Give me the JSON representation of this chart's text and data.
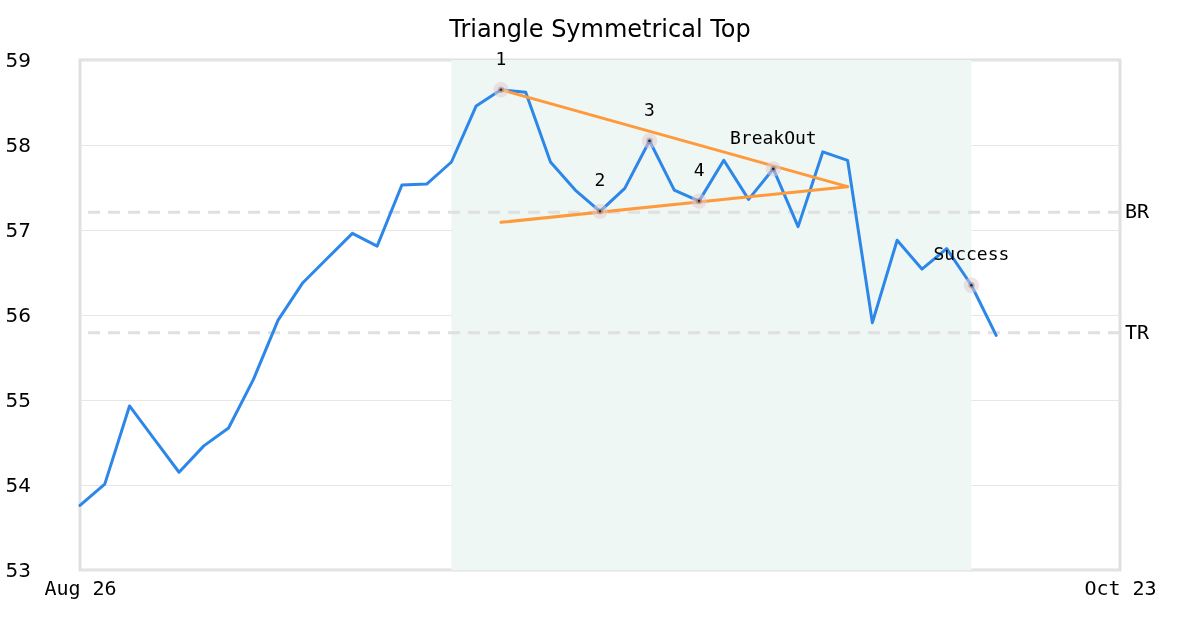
{
  "chart_data": {
    "type": "line",
    "title": "Triangle Symmetrical Top",
    "categories": [
      "Aug 26",
      null,
      null,
      null,
      null,
      null,
      null,
      null,
      null,
      null,
      null,
      null,
      null,
      null,
      null,
      null,
      null,
      null,
      null,
      null,
      null,
      null,
      null,
      null,
      null,
      null,
      null,
      null,
      null,
      null,
      null,
      null,
      null,
      null,
      null,
      null,
      null,
      null,
      null,
      null,
      null,
      null,
      "Oct 23"
    ],
    "ylim": [
      53,
      59
    ],
    "yticks": [
      53,
      54,
      55,
      56,
      57,
      58,
      59
    ],
    "grid": "y",
    "series": [
      {
        "color": "#2d87e9",
        "values": [
          53.76,
          54.01,
          54.93,
          54.54,
          54.15,
          54.46,
          54.67,
          55.24,
          55.94,
          56.38,
          56.67,
          56.96,
          56.81,
          57.53,
          57.54,
          57.8,
          58.46,
          58.65,
          58.62,
          57.8,
          57.47,
          57.22,
          57.49,
          58.05,
          57.47,
          57.34,
          57.82,
          57.36,
          57.72,
          57.04,
          57.92,
          57.82,
          55.91,
          56.88,
          56.54,
          56.78,
          56.35,
          55.76,
          null,
          null,
          null,
          null,
          null
        ]
      },
      {
        "type": "line",
        "color": "#ff9a3c",
        "values": [
          null,
          null,
          null,
          null,
          null,
          null,
          null,
          null,
          null,
          null,
          null,
          null,
          null,
          null,
          null,
          null,
          null,
          58.65,
          null,
          null,
          null,
          null,
          null,
          null,
          null,
          null,
          null,
          null,
          null,
          null,
          null,
          57.51,
          null,
          null,
          null,
          null,
          null,
          null,
          null,
          null,
          null,
          null,
          null
        ]
      },
      {
        "type": "line",
        "color": "#ff9a3c",
        "values": [
          null,
          null,
          null,
          null,
          null,
          null,
          null,
          null,
          null,
          null,
          null,
          null,
          null,
          null,
          null,
          null,
          null,
          57.09,
          null,
          null,
          null,
          null,
          null,
          null,
          null,
          null,
          null,
          null,
          null,
          null,
          null,
          57.51,
          null,
          null,
          null,
          null,
          null,
          null,
          null,
          null,
          null,
          null,
          null
        ]
      },
      {
        "type": "scatter",
        "color": "#000000",
        "marker": "circle",
        "values": [
          null,
          null,
          null,
          null,
          null,
          null,
          null,
          null,
          null,
          null,
          null,
          null,
          null,
          null,
          null,
          null,
          null,
          58.65,
          null,
          null,
          null,
          57.22,
          null,
          58.05,
          null,
          57.34,
          null,
          null,
          57.72,
          null,
          null,
          null,
          null,
          null,
          null,
          null,
          56.35,
          null,
          null,
          null,
          null,
          null,
          null
        ]
      }
    ],
    "ref_lines": [
      {
        "axis": "y",
        "value": 57.21,
        "label": "BR",
        "color": "#e0e0e0",
        "line_style": "dashed"
      },
      {
        "axis": "y",
        "value": 55.79,
        "label": "TR",
        "color": "#e0e0e0",
        "line_style": "dashed"
      }
    ],
    "annotations": [
      {
        "text": "1",
        "y": 58.65
      },
      {
        "text": "2",
        "y": 57.22
      },
      {
        "text": "3",
        "y": 58.05
      },
      {
        "text": "4",
        "y": 57.34
      },
      {
        "text": "BreakOut",
        "y": 57.72
      },
      {
        "text": "Success",
        "y": 56.35
      }
    ]
  }
}
